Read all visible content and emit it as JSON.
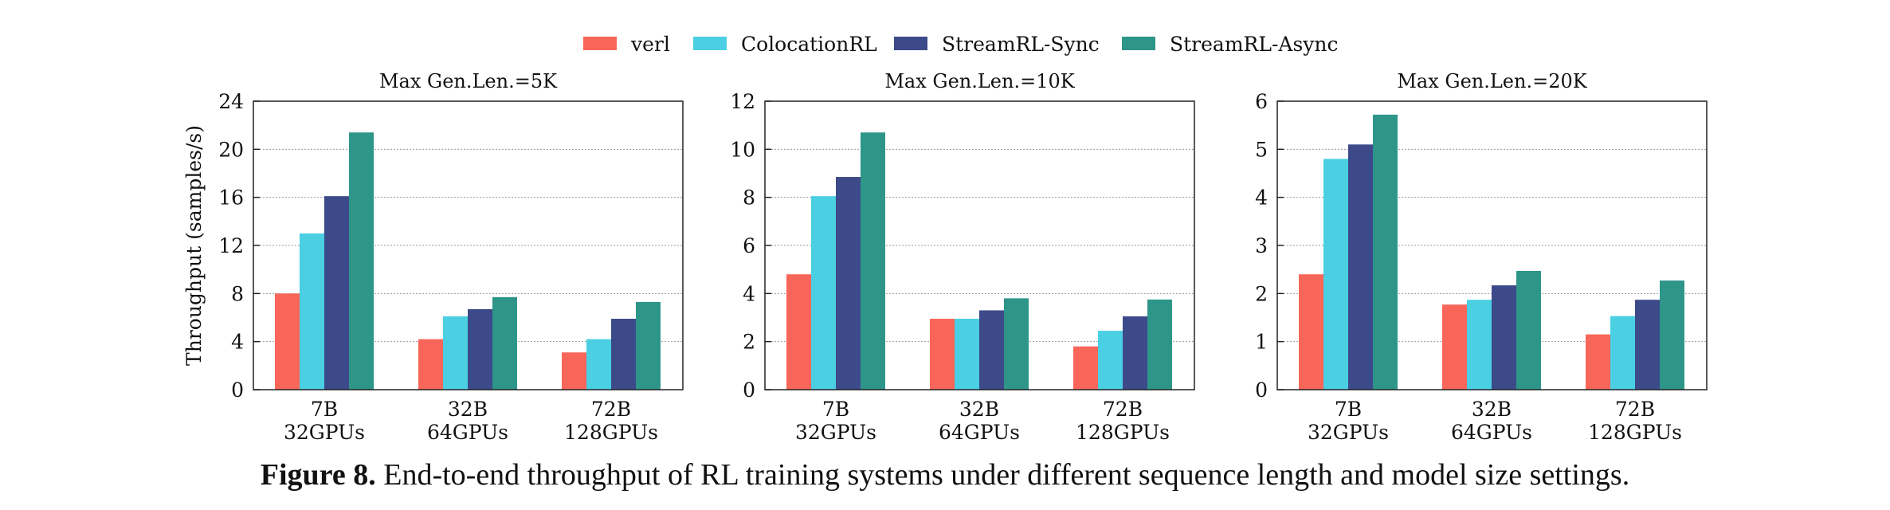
{
  "colors": {
    "verl": "#F8665A",
    "ColocationRL": "#4ACFE3",
    "StreamRL-Sync": "#3D4A8A",
    "StreamRL-Async": "#2E9589",
    "grid": "#999999"
  },
  "legend": [
    "verl",
    "ColocationRL",
    "StreamRL-Sync",
    "StreamRL-Async"
  ],
  "caption": {
    "label": "Figure 8.",
    "text": "End-to-end throughput of RL training systems under different sequence length and model size settings."
  },
  "chart_data": [
    {
      "type": "bar",
      "title": "Max Gen.Len.=5K",
      "ylabel": "Throughput (samples/s)",
      "categories": [
        [
          "7B",
          "32GPUs"
        ],
        [
          "32B",
          "64GPUs"
        ],
        [
          "72B",
          "128GPUs"
        ]
      ],
      "ylim": [
        0,
        24
      ],
      "yticks": [
        0,
        4,
        8,
        12,
        16,
        20,
        24
      ],
      "series": [
        {
          "name": "verl",
          "values": [
            8.0,
            4.2,
            3.1
          ]
        },
        {
          "name": "ColocationRL",
          "values": [
            13.0,
            6.1,
            4.2
          ]
        },
        {
          "name": "StreamRL-Sync",
          "values": [
            16.1,
            6.7,
            5.9
          ]
        },
        {
          "name": "StreamRL-Async",
          "values": [
            21.4,
            7.7,
            7.3
          ]
        }
      ]
    },
    {
      "type": "bar",
      "title": "Max Gen.Len.=10K",
      "ylabel": "",
      "categories": [
        [
          "7B",
          "32GPUs"
        ],
        [
          "32B",
          "64GPUs"
        ],
        [
          "72B",
          "128GPUs"
        ]
      ],
      "ylim": [
        0,
        12
      ],
      "yticks": [
        0,
        2,
        4,
        6,
        8,
        10,
        12
      ],
      "series": [
        {
          "name": "verl",
          "values": [
            4.8,
            2.95,
            1.8
          ]
        },
        {
          "name": "ColocationRL",
          "values": [
            8.05,
            2.95,
            2.45
          ]
        },
        {
          "name": "StreamRL-Sync",
          "values": [
            8.85,
            3.3,
            3.05
          ]
        },
        {
          "name": "StreamRL-Async",
          "values": [
            10.7,
            3.8,
            3.75
          ]
        }
      ]
    },
    {
      "type": "bar",
      "title": "Max Gen.Len.=20K",
      "ylabel": "",
      "categories": [
        [
          "7B",
          "32GPUs"
        ],
        [
          "32B",
          "64GPUs"
        ],
        [
          "72B",
          "128GPUs"
        ]
      ],
      "ylim": [
        0,
        6
      ],
      "yticks": [
        0,
        1,
        2,
        3,
        4,
        5,
        6
      ],
      "series": [
        {
          "name": "verl",
          "values": [
            2.4,
            1.77,
            1.15
          ]
        },
        {
          "name": "ColocationRL",
          "values": [
            4.8,
            1.87,
            1.53
          ]
        },
        {
          "name": "StreamRL-Sync",
          "values": [
            5.1,
            2.17,
            1.87
          ]
        },
        {
          "name": "StreamRL-Async",
          "values": [
            5.72,
            2.47,
            2.27
          ]
        }
      ]
    }
  ]
}
